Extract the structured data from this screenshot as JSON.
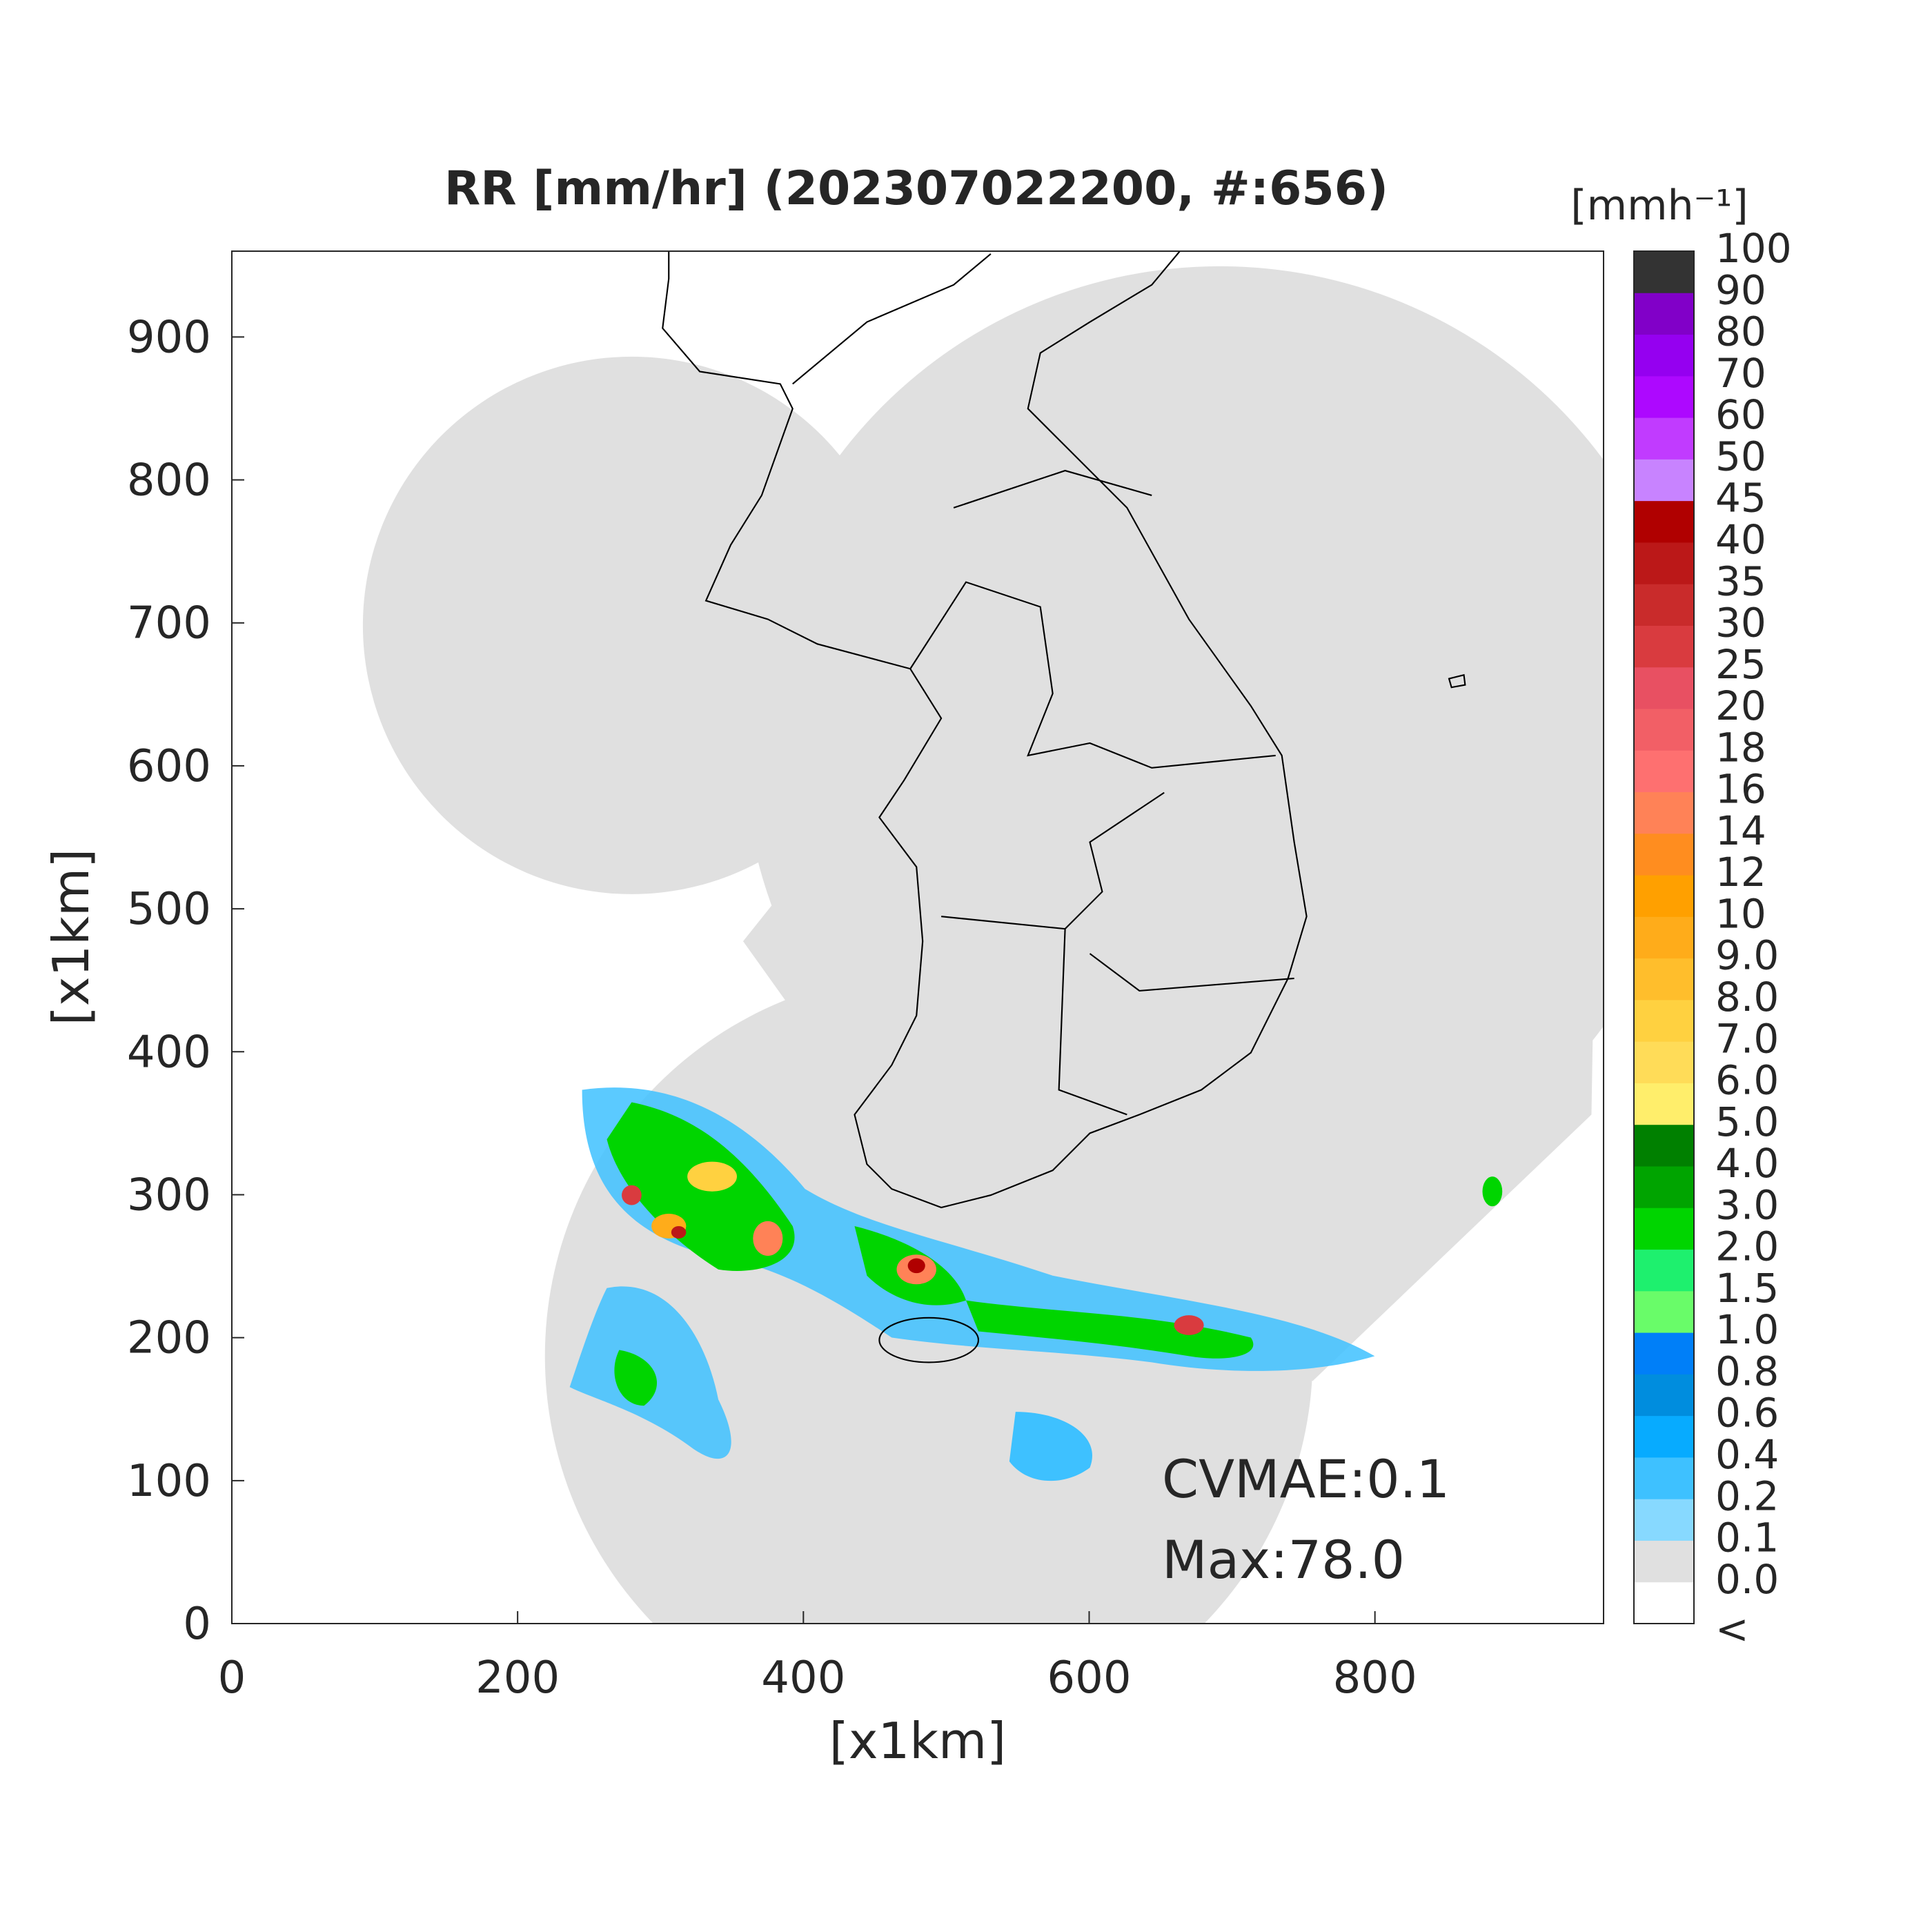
{
  "chart_data": {
    "type": "map",
    "title": "RR [mm/hr] (202307022200, #:656)",
    "x_label": "[x1km]",
    "y_label": "[x1km]",
    "xlim": [
      0,
      960
    ],
    "ylim": [
      0,
      960
    ],
    "xticks": [
      0,
      200,
      400,
      600,
      800
    ],
    "yticks": [
      0,
      100,
      200,
      300,
      400,
      500,
      600,
      700,
      800,
      900
    ],
    "colorbar": {
      "unit": "[mmh⁻¹]",
      "labels": [
        "<",
        "0.0",
        "0.1",
        "0.2",
        "0.4",
        "0.6",
        "0.8",
        "1.0",
        "1.5",
        "2.0",
        "3.0",
        "4.0",
        "5.0",
        "6.0",
        "7.0",
        "8.0",
        "9.0",
        "10",
        "12",
        "14",
        "16",
        "18",
        "20",
        "25",
        "30",
        "35",
        "40",
        "45",
        "50",
        "60",
        "70",
        "80",
        "90",
        "100"
      ],
      "colors": [
        "#ffffff",
        "#e0e0e0",
        "#87d9ff",
        "#3ec1ff",
        "#07abff",
        "#008dde",
        "#007ff8",
        "#69fc69",
        "#1ef06e",
        "#00d500",
        "#00a400",
        "#008000",
        "#ffee6b",
        "#ffdc58",
        "#ffd140",
        "#ffbe2c",
        "#ffac1a",
        "#ffa000",
        "#ff8d1f",
        "#ff8257",
        "#fe7070",
        "#f25f66",
        "#e85062",
        "#d93b3f",
        "#c92b2b",
        "#bb1818",
        "#b00000",
        "#c883ff",
        "#c13bff",
        "#ad08ff",
        "#9500f0",
        "#8100c8",
        "#333333"
      ]
    },
    "annotations": [
      "CVMAE:0.1",
      "Max:78.0"
    ]
  }
}
